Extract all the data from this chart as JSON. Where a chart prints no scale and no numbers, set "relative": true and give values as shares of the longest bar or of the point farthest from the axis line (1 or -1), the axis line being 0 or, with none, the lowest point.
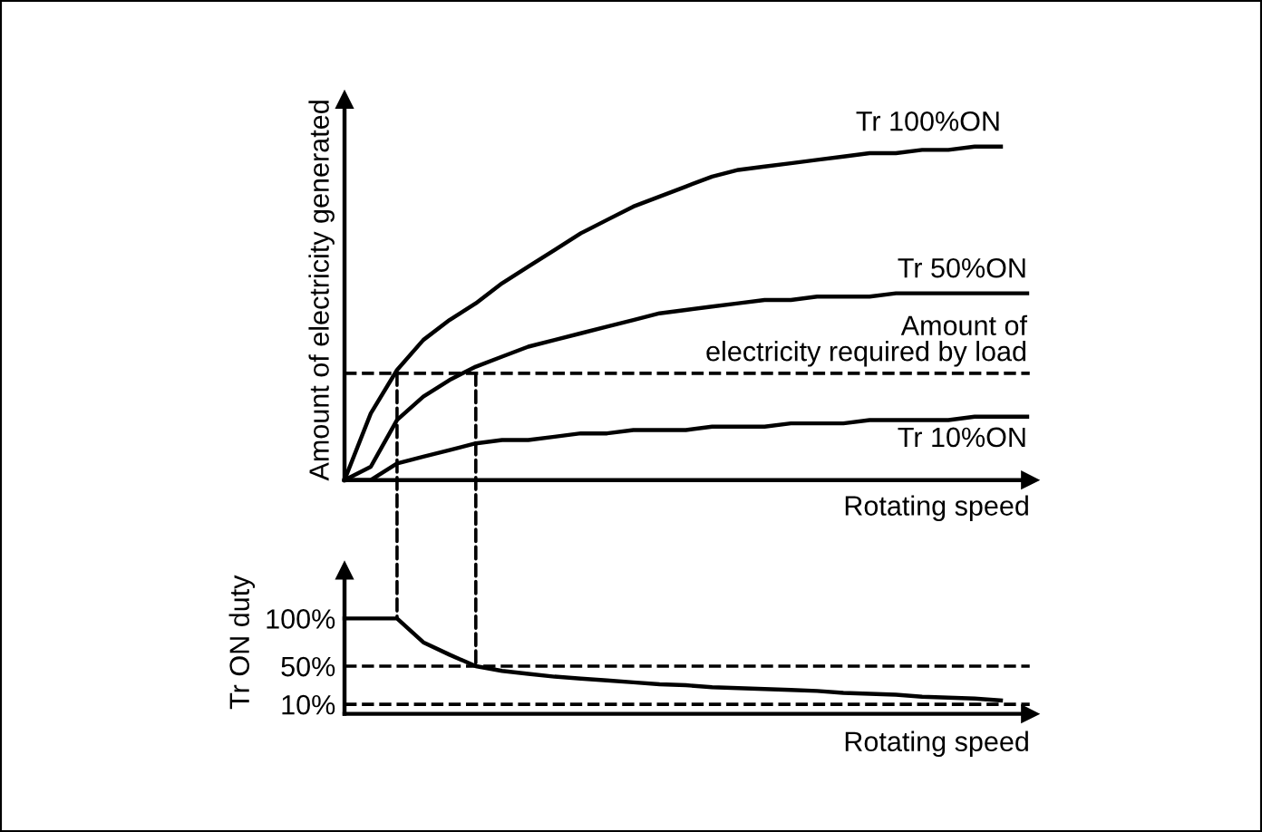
{
  "chart_data": [
    {
      "type": "line",
      "relative": true,
      "ylabel": "Amount of electricity generated",
      "xlabel": "Rotating speed",
      "tick_labels": false,
      "grid": false,
      "legend": false,
      "marker": "none",
      "line_style": "solid",
      "categories": [
        null,
        null,
        null,
        null,
        null,
        null,
        null,
        null,
        null,
        null,
        null,
        null,
        null,
        null,
        null,
        null,
        null,
        null,
        null,
        null,
        null,
        null,
        null,
        null,
        null,
        null,
        null
      ],
      "series": [
        {
          "name": "Tr 100%ON",
          "color": "#000000",
          "values": [
            0,
            0.2,
            0.33,
            0.42,
            0.48,
            0.53,
            0.59,
            0.64,
            0.69,
            0.74,
            0.78,
            0.82,
            0.85,
            0.88,
            0.91,
            0.93,
            0.94,
            0.95,
            0.96,
            0.97,
            0.98,
            0.98,
            0.99,
            0.99,
            1.0,
            1.0,
            null
          ]
        },
        {
          "name": "Tr 50%ON",
          "color": "#000000",
          "values": [
            0,
            0.04,
            0.18,
            0.25,
            0.3,
            0.34,
            0.37,
            0.4,
            0.42,
            0.44,
            0.46,
            0.48,
            0.5,
            0.51,
            0.52,
            0.53,
            0.54,
            0.54,
            0.55,
            0.55,
            0.55,
            0.56,
            0.56,
            0.56,
            0.56,
            0.56,
            0.56
          ]
        },
        {
          "name": "Tr 10%ON",
          "color": "#000000",
          "values": [
            0,
            0,
            0.05,
            0.07,
            0.09,
            0.11,
            0.12,
            0.12,
            0.13,
            0.14,
            0.14,
            0.15,
            0.15,
            0.15,
            0.16,
            0.16,
            0.16,
            0.17,
            0.17,
            0.17,
            0.18,
            0.18,
            0.18,
            0.18,
            0.19,
            0.19,
            0.19
          ]
        }
      ],
      "ref_lines": [
        {
          "axis": "y",
          "value": 0.32,
          "label": "Amount of\nelectricity required by load",
          "line_style": "dashed",
          "color": "#000000"
        }
      ]
    },
    {
      "type": "line",
      "ylabel": "Tr ON duty",
      "xlabel": "Rotating speed",
      "tick_labels": "y",
      "grid": false,
      "legend": false,
      "marker": "none",
      "line_style": "solid",
      "ylim": [
        0,
        150
      ],
      "yticks": [
        {
          "value": 100,
          "label": "100%"
        },
        {
          "value": 50,
          "label": "50%"
        },
        {
          "value": 10,
          "label": "10%"
        }
      ],
      "categories": [
        null,
        null,
        null,
        null,
        null,
        null,
        null,
        null,
        null,
        null,
        null,
        null,
        null,
        null,
        null,
        null,
        null,
        null,
        null,
        null,
        null,
        null,
        null,
        null,
        null,
        null,
        null
      ],
      "series": [
        {
          "color": "#000000",
          "values": [
            100,
            100,
            100,
            75,
            62,
            50,
            45,
            42,
            39,
            37,
            35,
            33,
            31,
            30,
            28,
            27,
            26,
            25,
            24,
            22,
            21,
            20,
            18,
            17,
            16,
            14,
            null
          ]
        }
      ],
      "ref_lines": [
        {
          "axis": "y",
          "value": 50,
          "line_style": "dashed",
          "color": "#000000"
        },
        {
          "axis": "y",
          "value": 10,
          "line_style": "dashed",
          "color": "#000000"
        }
      ]
    }
  ]
}
